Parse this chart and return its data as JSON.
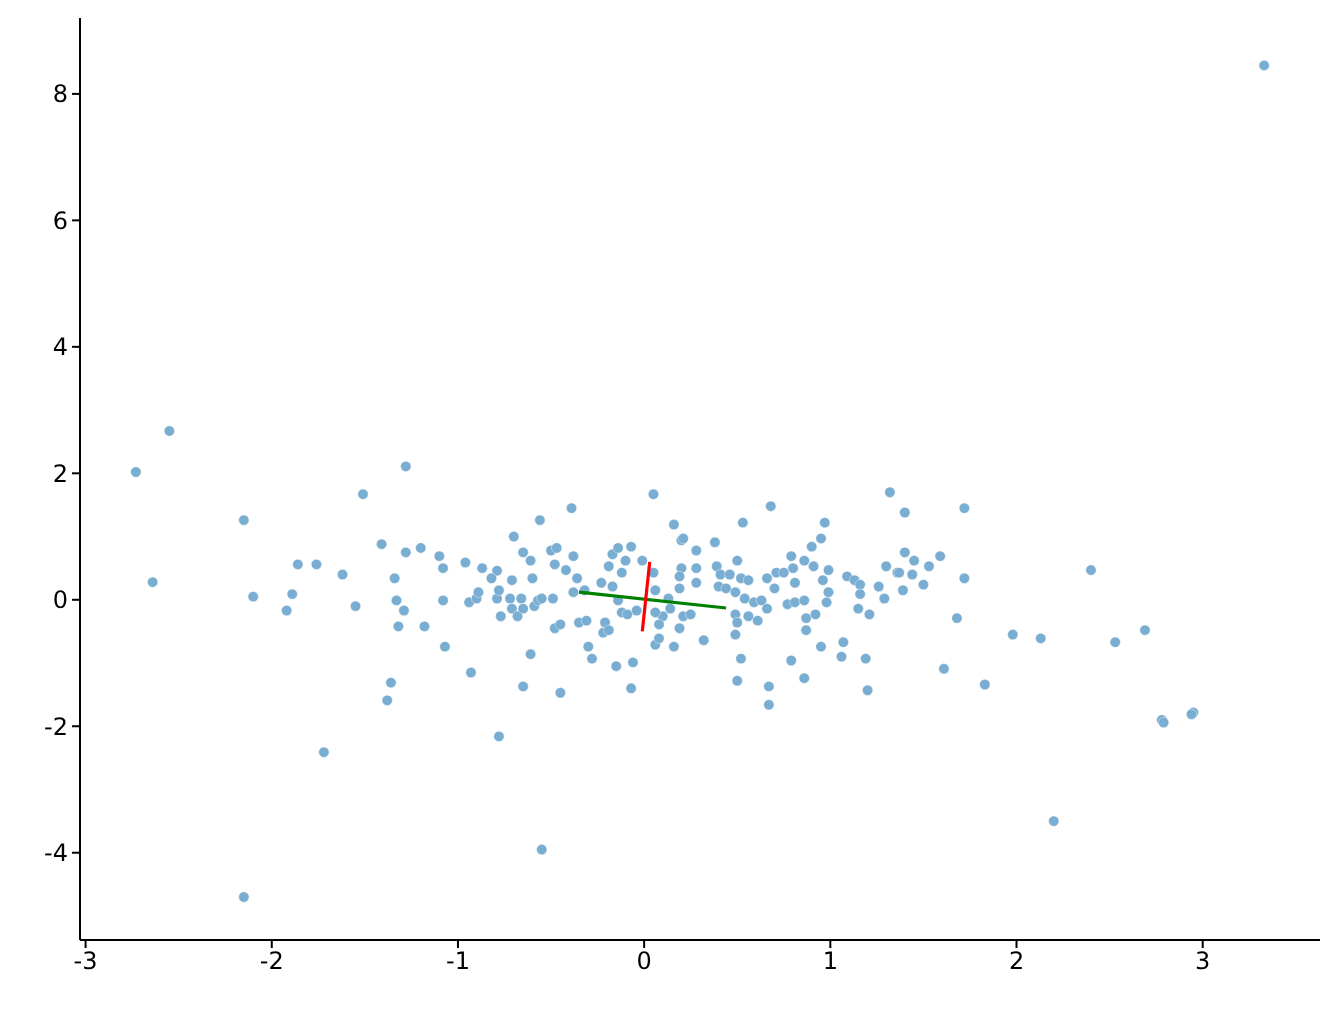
{
  "chart_data": {
    "type": "scatter",
    "xlim": [
      -3.03,
      3.63
    ],
    "ylim": [
      -5.38,
      9.2
    ],
    "xticks": [
      -3,
      -2,
      -1,
      0,
      1,
      2,
      3
    ],
    "yticks": [
      -4,
      -2,
      0,
      2,
      4,
      6,
      8
    ],
    "marker": "circle",
    "series": [
      {
        "color": "#79add2",
        "x": [
          -2.73,
          -2.55,
          -2.15,
          -2.15,
          -1.51,
          -1.41,
          -2.64,
          -1.86,
          -1.76,
          -1.62,
          -2.1,
          -1.89,
          -1.92,
          -1.55,
          -1.34,
          -1.33,
          -1.32,
          -1.36,
          -1.38,
          -1.72,
          -1.28,
          3.33,
          -0.55,
          2.2,
          2.78,
          2.95,
          -0.39,
          -0.56,
          -0.7,
          -1.28,
          -1.2,
          -1.1,
          -1.08,
          -0.96,
          -0.87,
          -0.79,
          -0.82,
          -0.65,
          -0.61,
          -0.5,
          -0.47,
          -0.48,
          -0.38,
          -0.42,
          -0.36,
          -0.71,
          -0.6,
          -1.29,
          -1.18,
          -1.08,
          -0.94,
          -0.9,
          -0.89,
          -0.79,
          -0.78,
          -0.72,
          -0.77,
          -0.71,
          -0.68,
          -0.66,
          -0.65,
          -0.59,
          -0.57,
          -0.55,
          -0.49,
          -0.48,
          -0.45,
          -0.38,
          -0.32,
          -0.35,
          -0.31,
          -1.07,
          -0.61,
          -0.93,
          -0.65,
          -0.45,
          -0.3,
          -0.28,
          -0.78,
          -0.23,
          -0.19,
          -0.17,
          -0.14,
          -0.07,
          -0.1,
          -0.12,
          -0.17,
          -0.01,
          -0.21,
          -0.22,
          -0.19,
          -0.12,
          -0.09,
          -0.15,
          -0.06,
          -0.07,
          -0.14,
          -0.04,
          0.05,
          0.68,
          1.32,
          0.53,
          0.16,
          0.97,
          0.2,
          0.21,
          0.38,
          0.28,
          0.95,
          0.9,
          0.79,
          0.86,
          0.5,
          0.05,
          0.2,
          0.28,
          0.39,
          0.41,
          0.46,
          0.52,
          0.56,
          0.66,
          0.71,
          0.75,
          0.8,
          0.91,
          0.99,
          0.81,
          0.7,
          0.96,
          1.09,
          1.13,
          1.16,
          1.26,
          1.3,
          1.36,
          1.16,
          1.29,
          0.19,
          0.19,
          0.28,
          0.06,
          0.4,
          0.44,
          0.49,
          0.54,
          0.59,
          0.63,
          0.66,
          0.77,
          0.81,
          0.86,
          0.98,
          0.99,
          0.13,
          0.14,
          0.21,
          0.25,
          0.1,
          0.06,
          0.08,
          0.06,
          0.08,
          0.19,
          0.16,
          0.32,
          0.49,
          0.5,
          0.49,
          0.56,
          0.61,
          0.87,
          0.87,
          0.92,
          1.15,
          1.21,
          0.95,
          1.07,
          1.06,
          1.19,
          0.52,
          0.79,
          0.5,
          0.86,
          0.67,
          0.67,
          1.2,
          1.4,
          1.72,
          1.4,
          1.45,
          1.53,
          1.59,
          1.37,
          1.44,
          1.5,
          1.39,
          1.72,
          2.4,
          1.68,
          1.98,
          2.13,
          2.53,
          2.69,
          1.61,
          1.83,
          2.79,
          2.94
        ],
        "values": [
          2.02,
          2.67,
          1.26,
          -4.7,
          1.67,
          0.88,
          0.28,
          0.56,
          0.56,
          0.4,
          0.05,
          0.09,
          -0.17,
          -0.1,
          0.34,
          -0.01,
          -0.42,
          -1.31,
          -1.59,
          -2.41,
          2.11,
          8.45,
          -3.95,
          -3.5,
          -1.9,
          -1.78,
          1.45,
          1.26,
          1.0,
          0.75,
          0.82,
          0.69,
          0.5,
          0.59,
          0.5,
          0.46,
          0.34,
          0.75,
          0.62,
          0.78,
          0.82,
          0.56,
          0.69,
          0.47,
          0.34,
          0.31,
          0.34,
          -0.17,
          -0.42,
          -0.01,
          -0.04,
          0.02,
          0.12,
          0.02,
          0.15,
          0.02,
          -0.26,
          -0.14,
          -0.26,
          0.02,
          -0.14,
          -0.1,
          -0.01,
          0.02,
          0.02,
          -0.45,
          -0.39,
          0.12,
          0.15,
          -0.36,
          -0.33,
          -0.74,
          -0.86,
          -1.15,
          -1.37,
          -1.47,
          -0.74,
          -0.93,
          -2.16,
          0.27,
          0.53,
          0.72,
          0.82,
          0.84,
          0.62,
          0.43,
          0.21,
          0.62,
          -0.36,
          -0.52,
          -0.48,
          -0.2,
          -0.23,
          -1.05,
          -0.99,
          -1.4,
          -0.01,
          -0.17,
          1.67,
          1.48,
          1.7,
          1.22,
          1.19,
          1.22,
          0.94,
          0.97,
          0.91,
          0.78,
          0.97,
          0.84,
          0.69,
          0.62,
          0.62,
          0.43,
          0.5,
          0.5,
          0.53,
          0.4,
          0.4,
          0.34,
          0.31,
          0.34,
          0.43,
          0.43,
          0.5,
          0.53,
          0.47,
          0.27,
          0.18,
          0.31,
          0.37,
          0.31,
          0.24,
          0.21,
          0.53,
          0.43,
          0.09,
          0.02,
          0.37,
          0.18,
          0.27,
          0.15,
          0.21,
          0.18,
          0.12,
          0.02,
          -0.04,
          -0.01,
          -0.14,
          -0.07,
          -0.04,
          -0.01,
          -0.04,
          0.12,
          0.02,
          -0.14,
          -0.26,
          -0.23,
          -0.26,
          -0.2,
          -0.39,
          -0.71,
          -0.61,
          -0.45,
          -0.74,
          -0.64,
          -0.23,
          -0.36,
          -0.55,
          -0.26,
          -0.33,
          -0.29,
          -0.48,
          -0.23,
          -0.14,
          -0.23,
          -0.74,
          -0.67,
          -0.9,
          -0.93,
          -0.93,
          -0.96,
          -1.28,
          -1.24,
          -1.37,
          -1.66,
          -1.43,
          1.38,
          1.45,
          0.75,
          0.62,
          0.53,
          0.69,
          0.43,
          0.4,
          0.24,
          0.15,
          0.34,
          0.47,
          -0.29,
          -0.55,
          -0.61,
          -0.67,
          -0.48,
          -1.09,
          -1.34,
          -1.94,
          -1.81
        ]
      },
      {
        "type": "line",
        "marker": "none",
        "color": "#008000",
        "x": [
          -0.35,
          0.44
        ],
        "values": [
          0.12,
          -0.13
        ]
      },
      {
        "type": "line",
        "marker": "none",
        "color": "#ff0000",
        "x": [
          -0.01,
          0.03
        ],
        "values": [
          -0.5,
          0.6
        ]
      }
    ]
  }
}
